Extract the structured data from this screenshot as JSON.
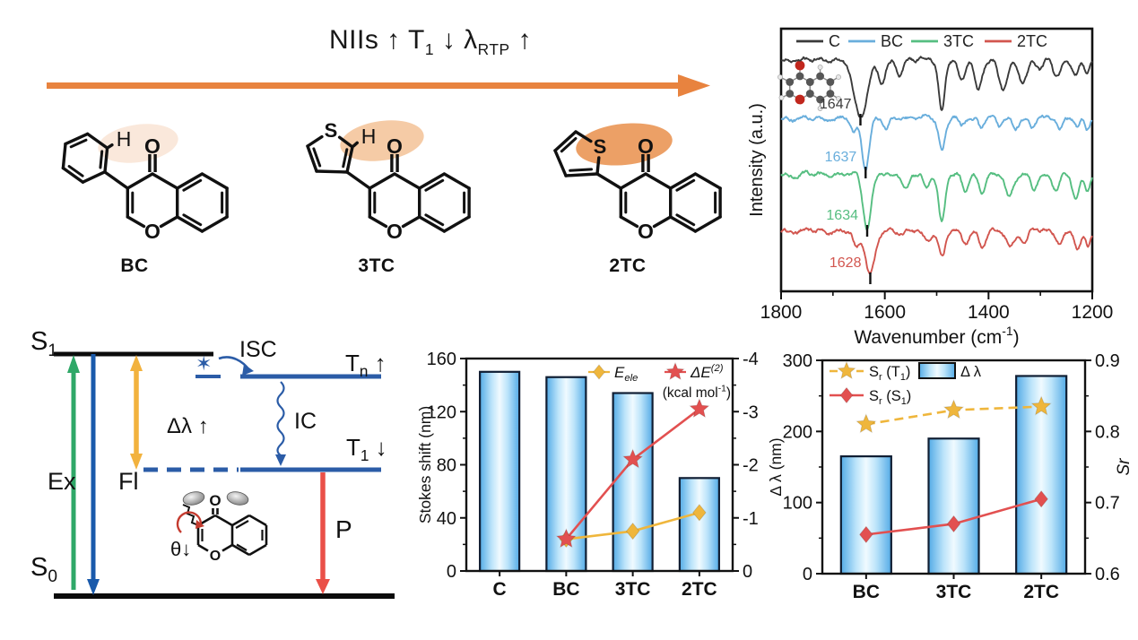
{
  "banner": {
    "title": "NIIs ↑ T_{1} ↓  λ_{RTP} ↑"
  },
  "trend_arrow_color": "#E8833F",
  "molecules": [
    {
      "label": "BC",
      "aryl": "phenyl",
      "highlight_color": "#FAE8DB",
      "atoms": {
        "carbonyl_o": "O",
        "ring_o": "O",
        "h": "H"
      }
    },
    {
      "label": "3TC",
      "aryl": "thiophen-3-yl",
      "highlight_color": "#F5CBA6",
      "atoms": {
        "carbonyl_o": "O",
        "ring_o": "O",
        "h": "H",
        "s": "S"
      }
    },
    {
      "label": "2TC",
      "aryl": "thiophen-2-yl",
      "highlight_color": "#ECA066",
      "atoms": {
        "carbonyl_o": "O",
        "ring_o": "O",
        "s": "S"
      }
    }
  ],
  "jablonski": {
    "s1": "S_{1}",
    "s0": "S_{0}",
    "tn": "T_{n} ↑",
    "t1": "T_{1} ↓",
    "isc": "ISC",
    "ic": "IC",
    "ex": "Ex",
    "fl": "Fl",
    "delta_lambda": "Δλ ↑",
    "p": "P",
    "theta": "θ↓",
    "spin_star": "✶",
    "inset_atoms": {
      "carbonyl_o": "O",
      "ring_o": "O"
    },
    "colors": {
      "level_blue": "#2B5CA7",
      "ex_green": "#2FA868",
      "fl_blue": "#1A5AAB",
      "shift_yellow": "#F2B23E",
      "p_red": "#EA5048",
      "level_black": "#0B0B0B"
    }
  },
  "colors": {
    "bar_edge_blue": "#54ABE6",
    "bar_center": "#F0FAFF",
    "bar_border": "#101E33",
    "series_yellow": "#EFB63C",
    "series_red": "#E25050"
  },
  "chart_data": [
    {
      "id": "ir",
      "type": "line",
      "xlabel": "Wavenumber (cm^{-1})",
      "ylabel": "Intensity (a.u.)",
      "xlim": [
        1800,
        1200
      ],
      "x_ticks": [
        1800,
        1600,
        1400,
        1200
      ],
      "x_minor_ticks": [
        1700,
        1500,
        1300
      ],
      "grid": false,
      "legend_position": "top-inside",
      "series": [
        {
          "name": "C",
          "color": "#3A3A3A",
          "peak_label": "1647",
          "dips": [
            [
              1647,
              1.0,
              13
            ],
            [
              1605,
              0.42,
              7
            ],
            [
              1572,
              0.28,
              6
            ],
            [
              1490,
              0.88,
              6
            ],
            [
              1452,
              0.38,
              7
            ],
            [
              1420,
              0.52,
              7
            ],
            [
              1372,
              0.55,
              8
            ],
            [
              1333,
              0.42,
              8
            ],
            [
              1300,
              0.2,
              6
            ],
            [
              1268,
              0.3,
              7
            ],
            [
              1232,
              0.28,
              7
            ],
            [
              1210,
              0.22,
              5
            ]
          ]
        },
        {
          "name": "BC",
          "color": "#69AEDC",
          "peak_label": "1637",
          "dips": [
            [
              1637,
              1.0,
              7
            ],
            [
              1660,
              0.3,
              5
            ],
            [
              1598,
              0.22,
              5
            ],
            [
              1490,
              0.62,
              6
            ],
            [
              1452,
              0.18,
              5
            ],
            [
              1415,
              0.2,
              5
            ],
            [
              1380,
              0.15,
              5
            ],
            [
              1348,
              0.2,
              5
            ],
            [
              1315,
              0.18,
              5
            ],
            [
              1262,
              0.2,
              5
            ],
            [
              1228,
              0.22,
              5
            ],
            [
              1210,
              0.18,
              4
            ]
          ]
        },
        {
          "name": "3TC",
          "color": "#56BE81",
          "peak_label": "1634",
          "dips": [
            [
              1634,
              1.0,
              8
            ],
            [
              1560,
              0.3,
              6
            ],
            [
              1520,
              0.28,
              6
            ],
            [
              1490,
              0.92,
              6
            ],
            [
              1445,
              0.3,
              6
            ],
            [
              1412,
              0.35,
              6
            ],
            [
              1360,
              0.45,
              7
            ],
            [
              1312,
              0.3,
              6
            ],
            [
              1270,
              0.25,
              6
            ],
            [
              1232,
              0.5,
              6
            ],
            [
              1210,
              0.3,
              5
            ]
          ]
        },
        {
          "name": "2TC",
          "color": "#D2564F",
          "peak_label": "1628",
          "dips": [
            [
              1628,
              1.0,
              9
            ],
            [
              1655,
              0.35,
              6
            ],
            [
              1518,
              0.3,
              6
            ],
            [
              1490,
              0.62,
              6
            ],
            [
              1445,
              0.3,
              6
            ],
            [
              1412,
              0.35,
              6
            ],
            [
              1358,
              0.35,
              7
            ],
            [
              1330,
              0.3,
              6
            ],
            [
              1262,
              0.28,
              6
            ],
            [
              1228,
              0.45,
              6
            ],
            [
              1208,
              0.3,
              5
            ]
          ]
        }
      ]
    },
    {
      "id": "stokes",
      "type": "bar+line",
      "categories": [
        "C",
        "BC",
        "3TC",
        "2TC"
      ],
      "ylabel_left": "Stokes shift (nm)",
      "ylim_left": [
        0,
        160
      ],
      "yticks_left": [
        0,
        40,
        80,
        120,
        160
      ],
      "ylim_right": [
        0,
        -4
      ],
      "yticks_right": [
        0,
        -1,
        -2,
        -3,
        -4
      ],
      "bars": {
        "name": "Stokes shift",
        "values": [
          150,
          146,
          134,
          70
        ]
      },
      "series": [
        {
          "name": "E_{ele}",
          "marker": "diamond",
          "color": "#EFB63C",
          "axis": "right",
          "dash": false,
          "x": [
            "BC",
            "3TC",
            "2TC"
          ],
          "values": [
            -0.6,
            -0.75,
            -1.1
          ]
        },
        {
          "name": "ΔE^{(2)}",
          "marker": "star",
          "color": "#E25050",
          "axis": "right",
          "dash": false,
          "x": [
            "BC",
            "3TC",
            "2TC"
          ],
          "values": [
            -0.6,
            -2.1,
            -3.05
          ]
        }
      ],
      "legend_note": "(kcal mol^{-1})"
    },
    {
      "id": "dlambda",
      "type": "bar+line",
      "categories": [
        "BC",
        "3TC",
        "2TC"
      ],
      "ylabel_left": "Δ λ (nm)",
      "ylim_left": [
        0,
        300
      ],
      "yticks_left": [
        0,
        100,
        200,
        300
      ],
      "ylabel_right": "Sr",
      "ylim_right": [
        0.6,
        0.9
      ],
      "yticks_right": [
        0.6,
        0.7,
        0.8,
        0.9
      ],
      "bars": {
        "name": "Δ λ",
        "values": [
          165,
          190,
          278
        ]
      },
      "series": [
        {
          "name": "S_{r} (T_{1})",
          "marker": "star",
          "color": "#EFB63C",
          "dash": true,
          "x": [
            "BC",
            "3TC",
            "2TC"
          ],
          "values": [
            0.81,
            0.83,
            0.835
          ]
        },
        {
          "name": "S_{r} (S_{1})",
          "marker": "diamond",
          "color": "#E25050",
          "dash": false,
          "x": [
            "BC",
            "3TC",
            "2TC"
          ],
          "values": [
            0.655,
            0.67,
            0.705
          ]
        }
      ]
    }
  ]
}
